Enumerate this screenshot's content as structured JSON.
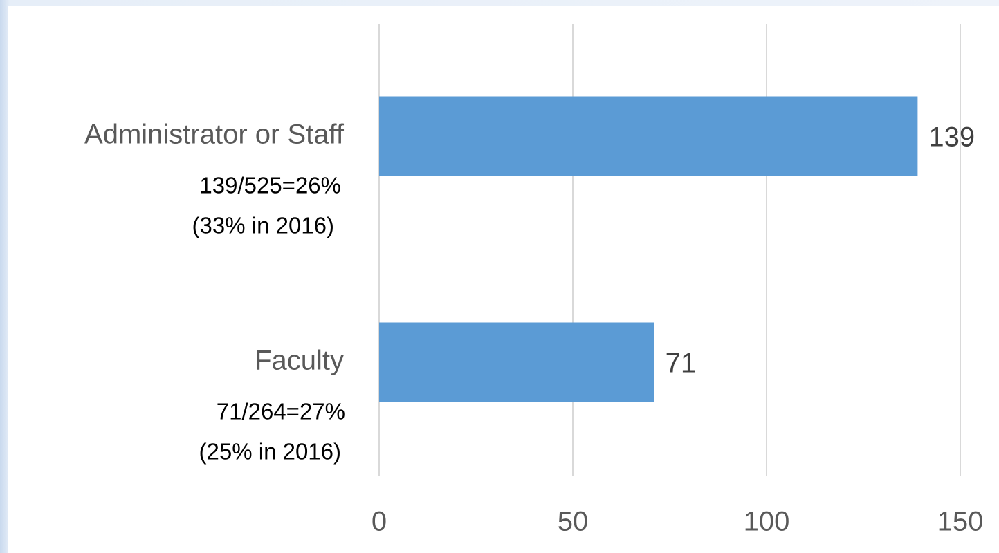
{
  "chart_data": {
    "type": "bar",
    "orientation": "horizontal",
    "categories": [
      "Administrator or Staff",
      "Faculty"
    ],
    "values": [
      139,
      71
    ],
    "color": "#5b9bd5",
    "annotations": [
      [
        "139/525=26%",
        "(33% in 2016)"
      ],
      [
        "71/264=27%",
        "(25% in 2016)"
      ]
    ],
    "xlim": [
      0,
      150
    ],
    "xticks": [
      0,
      50,
      100,
      150
    ],
    "grid": true
  }
}
